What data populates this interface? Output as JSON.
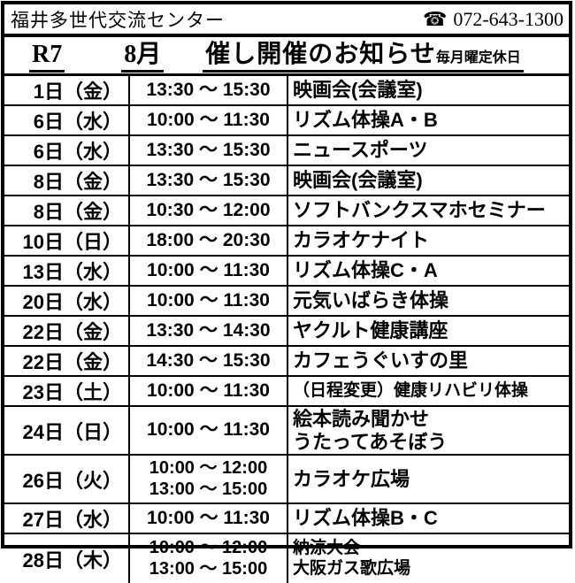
{
  "colors": {
    "border": "#000000",
    "background": "#ffffff",
    "text": "#000000"
  },
  "header": {
    "facility_name": "福井多世代交流センター",
    "phone_icon": "☎",
    "phone_number": "072-643-1300"
  },
  "title": {
    "era": "R7",
    "month": "8月",
    "heading": "催し開催のお知らせ",
    "note": "毎月曜定休日"
  },
  "schedule": {
    "rows": [
      {
        "date": "1日（金）",
        "times": [
          "13:30 ～ 15:30"
        ],
        "events": [
          "映画会(会議室)"
        ]
      },
      {
        "date": "6日（水）",
        "times": [
          "10:00 ～ 11:30"
        ],
        "events": [
          "リズム体操A・B"
        ]
      },
      {
        "date": "6日（水）",
        "times": [
          "13:30 ～ 15:30"
        ],
        "events": [
          "ニュースポーツ"
        ]
      },
      {
        "date": "8日（金）",
        "times": [
          "13:30 ～ 15:30"
        ],
        "events": [
          "映画会(会議室)"
        ]
      },
      {
        "date": "8日（金）",
        "times": [
          "10:30 ～ 12:00"
        ],
        "events": [
          "ソフトバンクスマホセミナー"
        ]
      },
      {
        "date": "10日（日）",
        "times": [
          "18:00 ～ 20:30"
        ],
        "events": [
          "カラオケナイト"
        ]
      },
      {
        "date": "13日（水）",
        "times": [
          "10:00 ～ 11:30"
        ],
        "events": [
          "リズム体操C・A"
        ]
      },
      {
        "date": "20日（水）",
        "times": [
          "10:00 ～ 11:30"
        ],
        "events": [
          "元気いばらき体操"
        ]
      },
      {
        "date": "22日（金）",
        "times": [
          "13:30 ～ 14:30"
        ],
        "events": [
          "ヤクルト健康講座"
        ]
      },
      {
        "date": "22日（金）",
        "times": [
          "14:30 ～ 15:30"
        ],
        "events": [
          "カフェうぐいすの里"
        ]
      },
      {
        "date": "23日（土）",
        "times": [
          "10:00 ～ 11:30"
        ],
        "events": [
          "（日程変更）健康リハビリ体操"
        ]
      },
      {
        "date": "24日（日）",
        "times": [
          "10:00 ～ 11:30"
        ],
        "events": [
          "絵本読み聞かせ",
          "うたってあそぼう"
        ]
      },
      {
        "date": "26日（火）",
        "times": [
          "10:00 ～ 12:00",
          "13:00 ～ 15:00"
        ],
        "events": [
          "カラオケ広場"
        ]
      },
      {
        "date": "27日（水）",
        "times": [
          "10:00 ～ 11:30"
        ],
        "events": [
          "リズム体操B・C"
        ]
      },
      {
        "date": "28日（木）",
        "times": [
          "10:00 ～ 12:00",
          "13:00 ～ 15:00"
        ],
        "events": [
          "納涼大会",
          "大阪ガス歌広場"
        ]
      }
    ]
  }
}
